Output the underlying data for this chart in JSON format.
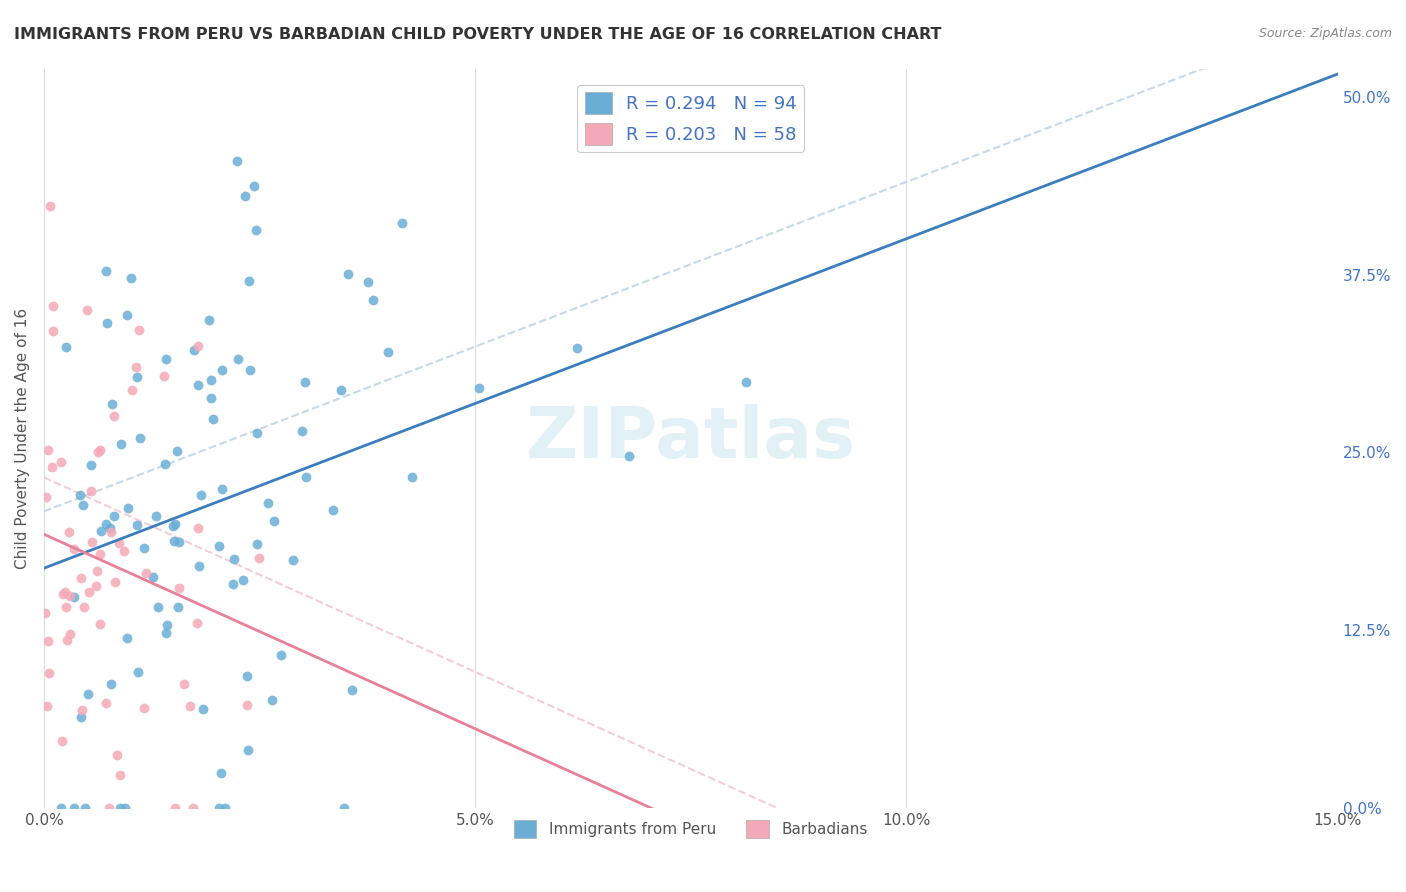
{
  "title": "IMMIGRANTS FROM PERU VS BARBADIAN CHILD POVERTY UNDER THE AGE OF 16 CORRELATION CHART",
  "source": "Source: ZipAtlas.com",
  "xlabel_ticks": [
    "0.0%",
    "5.0%",
    "10.0%",
    "15.0%"
  ],
  "ylabel_ticks_right": [
    "50.0%",
    "37.5%",
    "25.0%",
    "12.5%",
    "0.0%"
  ],
  "ylabel_label": "Child Poverty Under the Age of 16",
  "xlabel_label": "",
  "x_min": 0.0,
  "x_max": 0.15,
  "y_min": 0.0,
  "y_max": 0.52,
  "legend_entry1": "R = 0.294   N = 94",
  "legend_entry2": "R = 0.203   N = 58",
  "color_blue": "#6aaed6",
  "color_pink": "#f4a9b8",
  "color_line_blue": "#3a7ebf",
  "color_line_pink": "#e8809a",
  "color_line_dashed_blue": "#b0c8e0",
  "color_line_dashed_pink": "#f0b8c8",
  "watermark": "ZIPatlas",
  "R_blue": 0.294,
  "N_blue": 94,
  "R_pink": 0.203,
  "N_pink": 58,
  "legend_label_blue": "Immigrants from Peru",
  "legend_label_pink": "Barbadians",
  "grid_color": "#dddddd",
  "background_color": "#ffffff"
}
